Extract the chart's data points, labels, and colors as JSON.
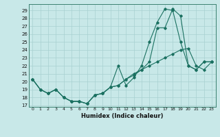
{
  "title": "",
  "xlabel": "Humidex (Indice chaleur)",
  "bg_color": "#c8e8e8",
  "grid_color": "#a8d0d0",
  "line_color": "#1a7060",
  "xlim": [
    -0.5,
    23.5
  ],
  "ylim": [
    16.8,
    29.8
  ],
  "xticks": [
    0,
    1,
    2,
    3,
    4,
    5,
    6,
    7,
    8,
    9,
    10,
    11,
    12,
    13,
    14,
    15,
    16,
    17,
    18,
    19,
    20,
    21,
    22,
    23
  ],
  "yticks": [
    17,
    18,
    19,
    20,
    21,
    22,
    23,
    24,
    25,
    26,
    27,
    28,
    29
  ],
  "series": [
    [
      20.3,
      19.0,
      18.5,
      19.0,
      18.0,
      17.5,
      17.5,
      17.2,
      18.3,
      18.5,
      19.3,
      22.0,
      19.5,
      20.5,
      22.0,
      25.0,
      27.5,
      29.2,
      29.0,
      25.0,
      22.0,
      21.5,
      22.5,
      22.5
    ],
    [
      20.3,
      19.0,
      18.5,
      19.0,
      18.0,
      17.5,
      17.5,
      17.2,
      18.3,
      18.5,
      19.3,
      19.5,
      20.3,
      21.0,
      21.5,
      22.0,
      22.5,
      23.0,
      23.5,
      24.0,
      24.2,
      22.0,
      21.5,
      22.5
    ],
    [
      20.3,
      19.0,
      18.5,
      19.0,
      18.0,
      17.5,
      17.5,
      17.2,
      18.3,
      18.5,
      19.3,
      19.5,
      20.3,
      20.8,
      21.5,
      22.5,
      26.8,
      26.8,
      29.2,
      28.3,
      22.0,
      21.5,
      22.5,
      22.5
    ]
  ]
}
